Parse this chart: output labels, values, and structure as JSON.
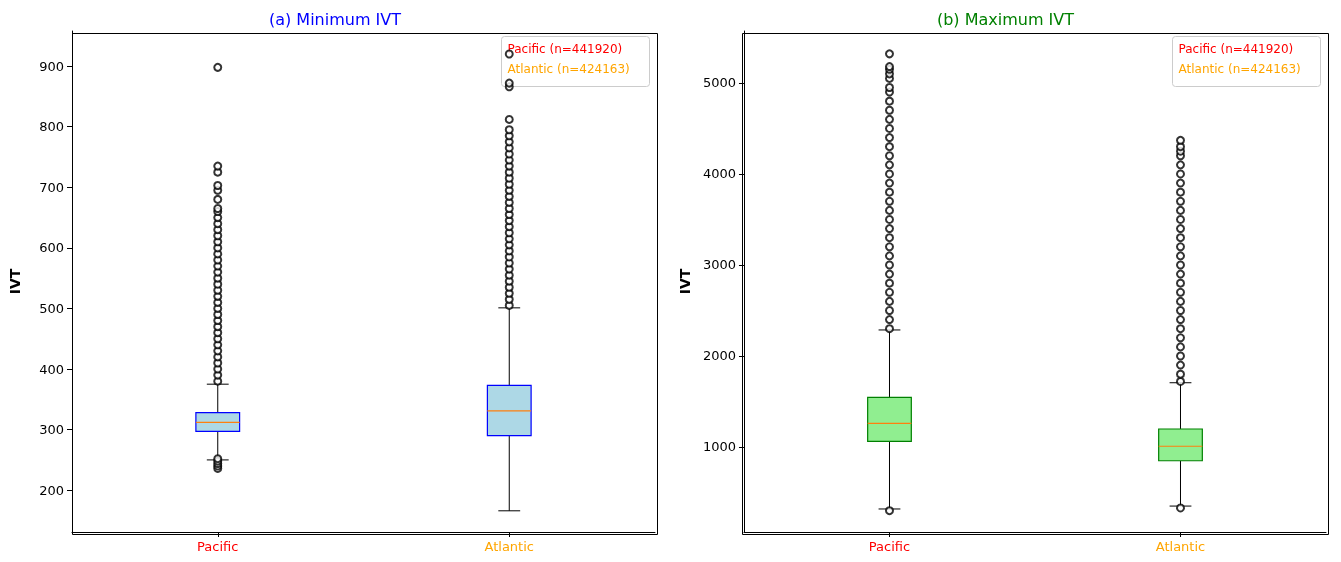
{
  "chart_data": [
    {
      "type": "box",
      "title": "(a) Minimum IVT",
      "ylabel": "IVT",
      "categories": [
        "Pacific",
        "Atlantic"
      ],
      "ylim": [
        131,
        958
      ],
      "yticks": [
        200,
        300,
        400,
        500,
        600,
        700,
        800,
        900
      ],
      "annotations": [
        "Pacific (n=441920)",
        "Atlantic (n=424163)"
      ],
      "series": [
        {
          "color": "#add8e6",
          "boxes": [
            {
              "low": 250,
              "q1": 297,
              "median": 312,
              "q3": 328,
              "high": 375,
              "outliers": [
                236,
                240,
                244,
                248,
                252,
                380,
                390,
                400,
                410,
                420,
                430,
                440,
                450,
                460,
                470,
                480,
                490,
                500,
                510,
                520,
                530,
                540,
                550,
                560,
                570,
                580,
                590,
                600,
                610,
                620,
                630,
                640,
                650,
                660,
                665,
                680,
                695,
                703,
                725,
                735,
                898
              ]
            },
            {
              "low": 166,
              "q1": 290,
              "median": 331,
              "q3": 373,
              "high": 501,
              "outliers": [
                505,
                515,
                525,
                535,
                545,
                555,
                565,
                575,
                585,
                595,
                605,
                615,
                625,
                635,
                645,
                655,
                665,
                675,
                685,
                695,
                705,
                715,
                725,
                735,
                745,
                755,
                765,
                775,
                785,
                795,
                812,
                866,
                872,
                920
              ]
            }
          ]
        }
      ]
    },
    {
      "type": "box",
      "title": "(b) Maximum IVT",
      "ylabel": "IVT",
      "categories": [
        "Pacific",
        "Atlantic"
      ],
      "ylim": [
        66,
        5571
      ],
      "yticks": [
        1000,
        2000,
        3000,
        4000,
        5000
      ],
      "annotations": [
        "Pacific (n=441920)",
        "Atlantic (n=424163)"
      ],
      "series": [
        {
          "color": "#90ee90",
          "boxes": [
            {
              "low": 319,
              "q1": 1062,
              "median": 1260,
              "q3": 1546,
              "high": 2286,
              "outliers": [
                300,
                2300,
                2400,
                2500,
                2600,
                2700,
                2800,
                2900,
                3000,
                3100,
                3200,
                3300,
                3400,
                3500,
                3600,
                3700,
                3800,
                3900,
                4000,
                4100,
                4200,
                4300,
                4400,
                4500,
                4600,
                4700,
                4800,
                4900,
                4950,
                5050,
                5100,
                5150,
                5180,
                5320
              ]
            },
            {
              "low": 351,
              "q1": 849,
              "median": 1008,
              "q3": 1198,
              "high": 1706,
              "outliers": [
                330,
                1720,
                1800,
                1900,
                2000,
                2100,
                2200,
                2300,
                2400,
                2500,
                2600,
                2700,
                2800,
                2900,
                3000,
                3100,
                3200,
                3300,
                3400,
                3500,
                3600,
                3700,
                3800,
                3900,
                4000,
                4100,
                4200,
                4250,
                4300,
                4370
              ]
            }
          ]
        }
      ]
    }
  ]
}
